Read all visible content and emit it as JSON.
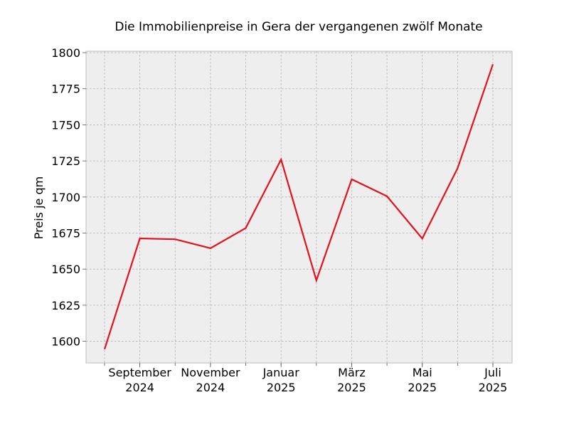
{
  "chart_data": {
    "type": "line",
    "title": "Die Immobilienpreise in Gera der vergangenen zwölf Monate",
    "xlabel": "",
    "ylabel": "Preis je qm",
    "x": [
      "2024-08",
      "2024-09",
      "2024-10",
      "2024-11",
      "2024-12",
      "2025-01",
      "2025-02",
      "2025-03",
      "2025-04",
      "2025-05",
      "2025-06",
      "2025-07"
    ],
    "series": [
      {
        "values": [
          1594.5,
          1671.3,
          1670.7,
          1664.5,
          1678.5,
          1726.0,
          1642.2,
          1712.3,
          1700.5,
          1671.2,
          1720.0,
          1792.0
        ],
        "color": "#e3121b"
      }
    ],
    "x_tick_labels": [
      {
        "x": "2024-09",
        "line1": "September",
        "line2": "2024"
      },
      {
        "x": "2024-11",
        "line1": "November",
        "line2": "2024"
      },
      {
        "x": "2025-01",
        "line1": "Januar",
        "line2": "2025"
      },
      {
        "x": "2025-03",
        "line1": "März",
        "line2": "2025"
      },
      {
        "x": "2025-05",
        "line1": "Mai",
        "line2": "2025"
      },
      {
        "x": "2025-07",
        "line1": "Juli",
        "line2": "2025"
      }
    ],
    "yticks": [
      1600,
      1625,
      1650,
      1675,
      1700,
      1725,
      1750,
      1775,
      1800
    ],
    "ylim": [
      1585,
      1801
    ],
    "grid": true,
    "colors": {
      "background": "#eeeeee",
      "grid": "#b0b0b0",
      "frame": "#bcbcbc",
      "line": "#e3121b"
    }
  }
}
